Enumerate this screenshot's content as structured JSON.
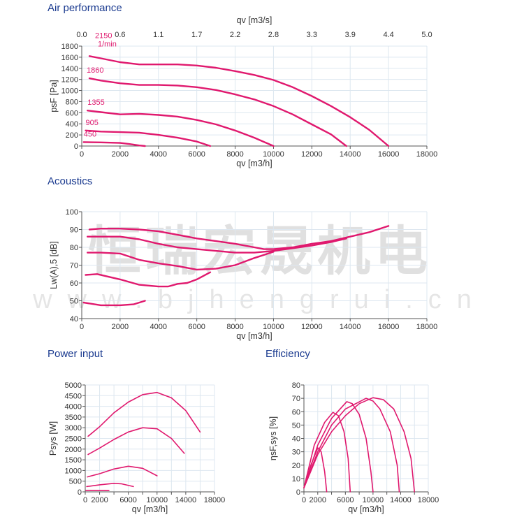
{
  "colors": {
    "curve": "#e0196e",
    "title": "#1a3a8f",
    "grid": "#dde7f0"
  },
  "watermark": {
    "text": "恒瑞宏晟机电",
    "url": "www.bjhengrui.cn"
  },
  "chart_data": [
    {
      "id": "air",
      "type": "line",
      "title": "Air performance",
      "xlabel": "qv [m3/h]",
      "ylabel": "psF [Pa]",
      "x2label": "qv [m3/s]",
      "x2ticks": [
        "0.0",
        "0.6",
        "1.1",
        "1.7",
        "2.2",
        "2.8",
        "3.3",
        "3.9",
        "4.4",
        "5.0"
      ],
      "xlim": [
        0,
        18000
      ],
      "ylim": [
        0,
        1800
      ],
      "xticks": [
        0,
        2000,
        4000,
        6000,
        8000,
        10000,
        12000,
        14000,
        16000,
        18000
      ],
      "yticks": [
        0,
        200,
        400,
        600,
        800,
        1000,
        1200,
        1400,
        1600,
        1800
      ],
      "grid": true,
      "speed_unit": "1/min",
      "series": [
        {
          "name": "2150",
          "points": [
            [
              400,
              1620
            ],
            [
              1000,
              1580
            ],
            [
              2000,
              1510
            ],
            [
              3000,
              1470
            ],
            [
              4000,
              1470
            ],
            [
              5000,
              1470
            ],
            [
              6000,
              1450
            ],
            [
              7000,
              1410
            ],
            [
              8000,
              1350
            ],
            [
              9000,
              1280
            ],
            [
              10000,
              1190
            ],
            [
              11000,
              1060
            ],
            [
              12000,
              900
            ],
            [
              13000,
              720
            ],
            [
              14000,
              520
            ],
            [
              15000,
              290
            ],
            [
              16000,
              0
            ]
          ]
        },
        {
          "name": "1860",
          "points": [
            [
              400,
              1220
            ],
            [
              1000,
              1180
            ],
            [
              2000,
              1130
            ],
            [
              3000,
              1100
            ],
            [
              4000,
              1100
            ],
            [
              5000,
              1090
            ],
            [
              6000,
              1060
            ],
            [
              7000,
              1010
            ],
            [
              8000,
              930
            ],
            [
              9000,
              840
            ],
            [
              10000,
              720
            ],
            [
              11000,
              570
            ],
            [
              12000,
              390
            ],
            [
              13000,
              210
            ],
            [
              13800,
              0
            ]
          ]
        },
        {
          "name": "1355",
          "points": [
            [
              300,
              640
            ],
            [
              1000,
              610
            ],
            [
              2000,
              570
            ],
            [
              3000,
              580
            ],
            [
              4000,
              560
            ],
            [
              5000,
              530
            ],
            [
              6000,
              470
            ],
            [
              7000,
              390
            ],
            [
              8000,
              280
            ],
            [
              9000,
              150
            ],
            [
              10000,
              0
            ]
          ]
        },
        {
          "name": "905",
          "points": [
            [
              200,
              280
            ],
            [
              1000,
              260
            ],
            [
              2000,
              250
            ],
            [
              3000,
              240
            ],
            [
              4000,
              200
            ],
            [
              5000,
              150
            ],
            [
              6000,
              80
            ],
            [
              6700,
              0
            ]
          ]
        },
        {
          "name": "450",
          "points": [
            [
              100,
              70
            ],
            [
              1000,
              65
            ],
            [
              2000,
              55
            ],
            [
              2500,
              35
            ],
            [
              3000,
              10
            ],
            [
              3300,
              0
            ]
          ]
        }
      ]
    },
    {
      "id": "acoustics",
      "type": "line",
      "title": "Acoustics",
      "xlabel": "qv [m3/h]",
      "ylabel": "Lw(A),5 [dB]",
      "xlim": [
        0,
        18000
      ],
      "ylim": [
        40,
        100
      ],
      "xticks": [
        0,
        2000,
        4000,
        6000,
        8000,
        10000,
        12000,
        14000,
        16000,
        18000
      ],
      "yticks": [
        40,
        50,
        60,
        70,
        80,
        90,
        100
      ],
      "grid": true,
      "series": [
        {
          "points": [
            [
              400,
              90
            ],
            [
              1000,
              90.5
            ],
            [
              2000,
              90.5
            ],
            [
              3000,
              90
            ],
            [
              4000,
              89
            ],
            [
              5000,
              87
            ],
            [
              6000,
              85
            ],
            [
              7000,
              83.5
            ],
            [
              8000,
              82
            ],
            [
              9000,
              80
            ],
            [
              9500,
              79
            ],
            [
              10000,
              79
            ],
            [
              11000,
              80
            ],
            [
              12000,
              82
            ],
            [
              13000,
              83.5
            ],
            [
              14000,
              86
            ],
            [
              15000,
              88.5
            ],
            [
              16000,
              92
            ]
          ]
        },
        {
          "points": [
            [
              300,
              86
            ],
            [
              1000,
              86
            ],
            [
              2000,
              86
            ],
            [
              3000,
              84.5
            ],
            [
              4000,
              82
            ],
            [
              5000,
              80
            ],
            [
              6000,
              79
            ],
            [
              7000,
              78
            ],
            [
              8000,
              77
            ],
            [
              9000,
              77
            ],
            [
              10000,
              78
            ],
            [
              11000,
              79.5
            ],
            [
              12000,
              81
            ],
            [
              13000,
              83
            ],
            [
              13800,
              85
            ]
          ]
        },
        {
          "points": [
            [
              300,
              77
            ],
            [
              1000,
              77
            ],
            [
              2000,
              76.5
            ],
            [
              3000,
              73
            ],
            [
              4000,
              71
            ],
            [
              5000,
              69.5
            ],
            [
              6000,
              67.5
            ],
            [
              7000,
              68
            ],
            [
              8000,
              70
            ],
            [
              9000,
              74
            ],
            [
              10000,
              77.5
            ]
          ]
        },
        {
          "points": [
            [
              200,
              64.5
            ],
            [
              800,
              65
            ],
            [
              2000,
              62
            ],
            [
              3000,
              59
            ],
            [
              4000,
              58
            ],
            [
              4500,
              58
            ],
            [
              5000,
              59.5
            ],
            [
              5500,
              60
            ],
            [
              6000,
              62
            ],
            [
              6700,
              66
            ]
          ]
        },
        {
          "points": [
            [
              100,
              49
            ],
            [
              1000,
              47.5
            ],
            [
              2000,
              47.5
            ],
            [
              2700,
              48
            ],
            [
              3300,
              50
            ]
          ]
        }
      ]
    },
    {
      "id": "power",
      "type": "line",
      "title": "Power input",
      "xlabel": "qv [m3/h]",
      "ylabel": "Psys [W]",
      "xlim": [
        0,
        18000
      ],
      "ylim": [
        0,
        5000
      ],
      "xticks": [
        0,
        2000,
        6000,
        10000,
        14000,
        18000
      ],
      "xgrid": [
        0,
        2000,
        4000,
        6000,
        8000,
        10000,
        12000,
        14000,
        16000,
        18000
      ],
      "yticks": [
        0,
        500,
        1000,
        1500,
        2000,
        2500,
        3000,
        3500,
        4000,
        4500,
        5000
      ],
      "grid": true,
      "series": [
        {
          "points": [
            [
              400,
              2600
            ],
            [
              2000,
              3050
            ],
            [
              4000,
              3700
            ],
            [
              6000,
              4200
            ],
            [
              8000,
              4550
            ],
            [
              10000,
              4650
            ],
            [
              12000,
              4400
            ],
            [
              14000,
              3800
            ],
            [
              16000,
              2800
            ]
          ]
        },
        {
          "points": [
            [
              400,
              1750
            ],
            [
              2000,
              2050
            ],
            [
              4000,
              2450
            ],
            [
              6000,
              2800
            ],
            [
              8000,
              3000
            ],
            [
              10000,
              2950
            ],
            [
              12000,
              2500
            ],
            [
              13800,
              1800
            ]
          ]
        },
        {
          "points": [
            [
              300,
              700
            ],
            [
              2000,
              850
            ],
            [
              4000,
              1070
            ],
            [
              6000,
              1200
            ],
            [
              8000,
              1100
            ],
            [
              10000,
              750
            ]
          ]
        },
        {
          "points": [
            [
              200,
              250
            ],
            [
              2000,
              330
            ],
            [
              4000,
              400
            ],
            [
              5000,
              380
            ],
            [
              6700,
              250
            ]
          ]
        },
        {
          "points": [
            [
              100,
              70
            ],
            [
              3300,
              60
            ]
          ]
        }
      ]
    },
    {
      "id": "efficiency",
      "type": "line",
      "title": "Efficiency",
      "xlabel": "qv [m3/h]",
      "ylabel": "ηsF,sys [%]",
      "xlim": [
        0,
        18000
      ],
      "ylim": [
        0,
        80
      ],
      "xticks": [
        0,
        2000,
        6000,
        10000,
        14000,
        18000
      ],
      "xgrid": [
        0,
        2000,
        4000,
        6000,
        8000,
        10000,
        12000,
        14000,
        16000,
        18000
      ],
      "yticks": [
        0,
        10,
        20,
        30,
        40,
        50,
        60,
        70,
        80
      ],
      "grid": true,
      "series": [
        {
          "points": [
            [
              0,
              3
            ],
            [
              2000,
              28
            ],
            [
              4000,
              45
            ],
            [
              6000,
              57
            ],
            [
              8000,
              66
            ],
            [
              10000,
              70.5
            ],
            [
              11500,
              69
            ],
            [
              13000,
              62
            ],
            [
              14500,
              45
            ],
            [
              15500,
              25
            ],
            [
              16000,
              0
            ]
          ]
        },
        {
          "points": [
            [
              0,
              3
            ],
            [
              2000,
              30
            ],
            [
              4000,
              50
            ],
            [
              6000,
              62
            ],
            [
              9000,
              70
            ],
            [
              10000,
              68
            ],
            [
              11000,
              62
            ],
            [
              12500,
              45
            ],
            [
              13500,
              20
            ],
            [
              13800,
              0
            ]
          ]
        },
        {
          "points": [
            [
              0,
              3
            ],
            [
              2000,
              35
            ],
            [
              4000,
              55
            ],
            [
              6200,
              67.5
            ],
            [
              7000,
              66
            ],
            [
              8000,
              58
            ],
            [
              9000,
              40
            ],
            [
              9700,
              15
            ],
            [
              10000,
              0
            ]
          ]
        },
        {
          "points": [
            [
              0,
              3
            ],
            [
              1500,
              35
            ],
            [
              3000,
              52
            ],
            [
              4200,
              59.5
            ],
            [
              5000,
              57
            ],
            [
              5800,
              45
            ],
            [
              6400,
              25
            ],
            [
              6700,
              0
            ]
          ]
        },
        {
          "points": [
            [
              0,
              3
            ],
            [
              1000,
              20
            ],
            [
              2000,
              33
            ],
            [
              2500,
              30
            ],
            [
              3000,
              15
            ],
            [
              3300,
              0
            ]
          ]
        }
      ]
    }
  ]
}
